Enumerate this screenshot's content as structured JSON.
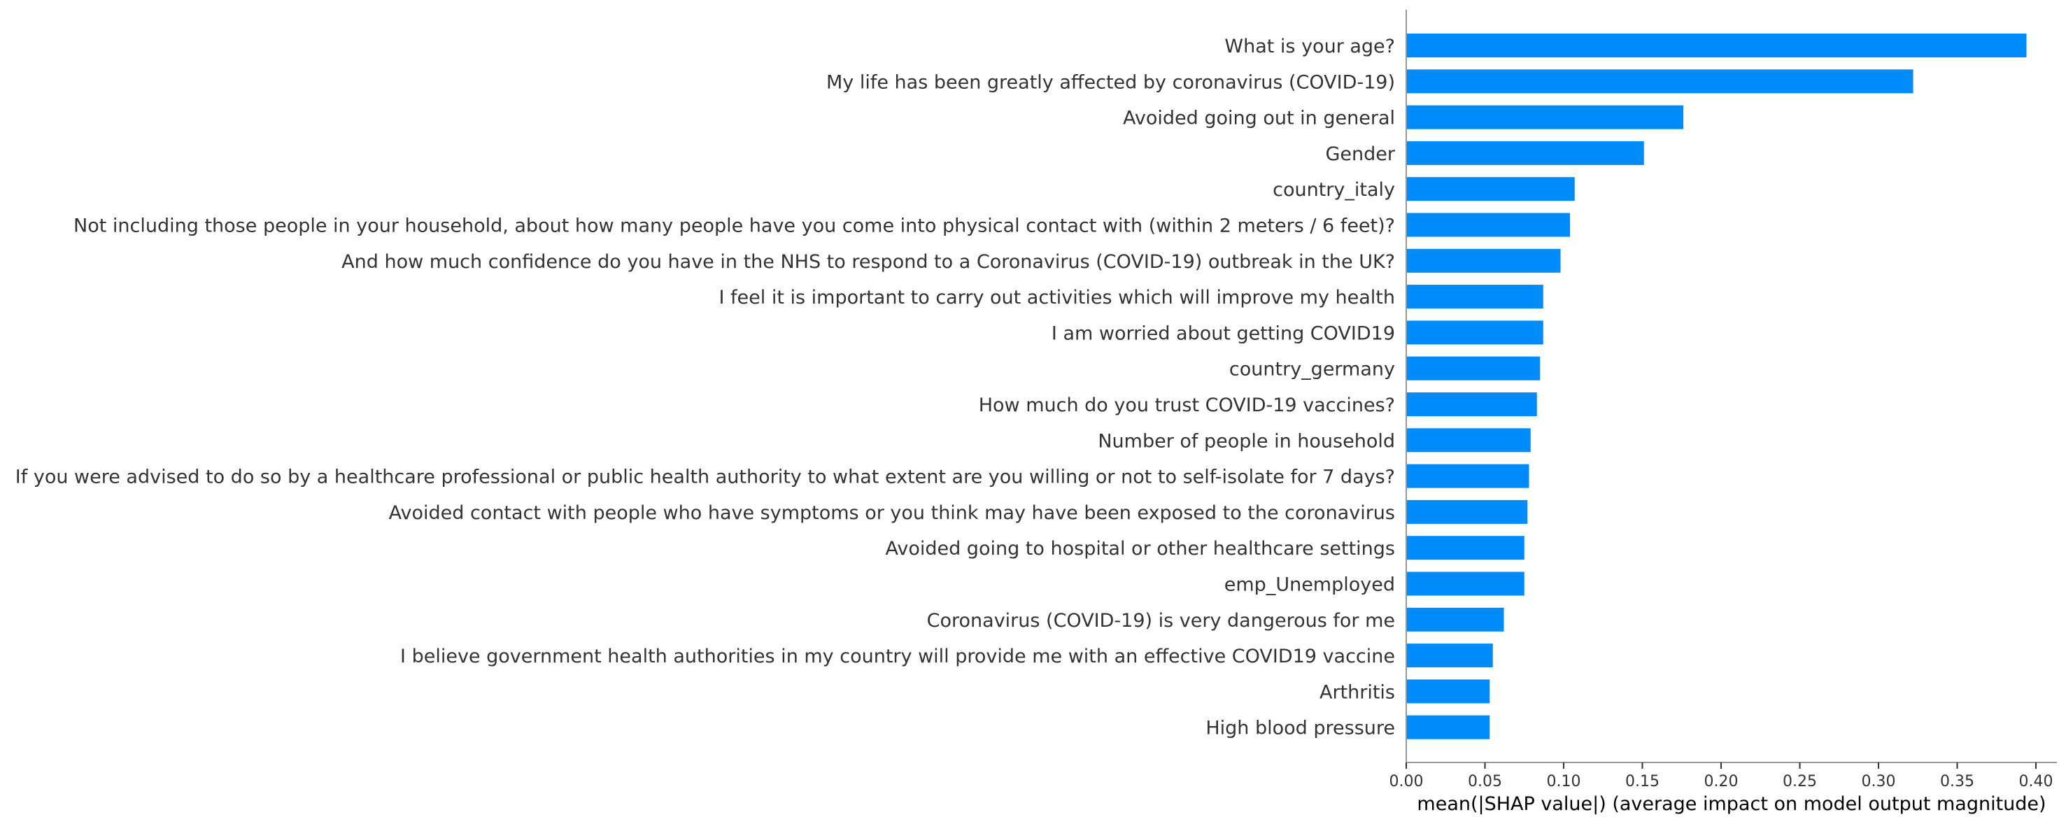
{
  "chart_data": {
    "type": "bar",
    "orientation": "horizontal",
    "title": "",
    "xlabel": "mean(|SHAP value|) (average impact on model output magnitude)",
    "ylabel": "",
    "xlim": [
      0,
      0.41
    ],
    "xticks": [
      "0.00",
      "0.05",
      "0.10",
      "0.15",
      "0.20",
      "0.25",
      "0.30",
      "0.35",
      "0.40"
    ],
    "grid": false,
    "legend": "none",
    "bar_color": "#008bfb",
    "categories": [
      "What is your age?",
      "My life has been greatly affected by coronavirus (COVID-19)",
      "Avoided going out in general",
      "Gender",
      "country_italy",
      "Not including those people in your household, about how many people have you come into physical contact with (within 2 meters / 6 feet)?",
      "And how much confidence do you have in the NHS to respond to a Coronavirus (COVID-19) outbreak in the UK?",
      "I feel it is important to carry out activities which will improve my health",
      "I am worried about getting COVID19",
      "country_germany",
      "How much do you trust COVID-19 vaccines?",
      "Number of people in household",
      "If you were advised to do so by a healthcare professional or public health authority to what extent are you willing or not to self-isolate for 7 days?",
      "Avoided contact with people who have symptoms or you think may have been exposed to the coronavirus",
      "Avoided going to hospital or other healthcare settings",
      "emp_Unemployed",
      "Coronavirus (COVID-19) is very dangerous for me",
      "I believe government health authorities in my country will provide me with an effective COVID19 vaccine",
      "Arthritis",
      "High blood pressure"
    ],
    "values": [
      0.394,
      0.322,
      0.176,
      0.151,
      0.107,
      0.104,
      0.098,
      0.087,
      0.087,
      0.085,
      0.083,
      0.079,
      0.078,
      0.077,
      0.075,
      0.075,
      0.062,
      0.055,
      0.053,
      0.053
    ]
  }
}
